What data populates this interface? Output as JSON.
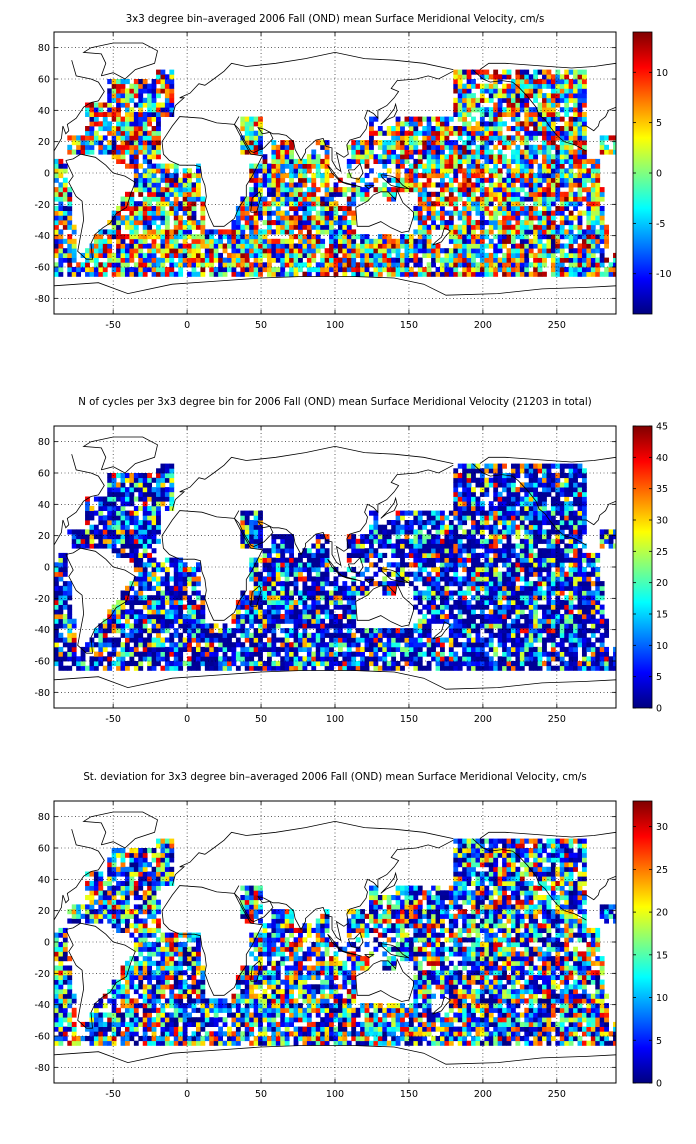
{
  "panels": [
    {
      "title": "3x3 degree bin–averaged 2006 Fall (OND) mean Surface Meridional Velocity, cm/s",
      "chart_data": {
        "type": "heatmap",
        "xlim": [
          -90,
          290
        ],
        "ylim": [
          -90,
          90
        ],
        "xticks": [
          -50,
          0,
          50,
          100,
          150,
          200,
          250
        ],
        "yticks": [
          -80,
          -60,
          -40,
          -20,
          0,
          20,
          40,
          60,
          80
        ],
        "grid": "dotted",
        "bin_size_deg": 3,
        "colorbar": {
          "range": [
            -14,
            14
          ],
          "ticks": [
            -10,
            -5,
            0,
            5,
            10
          ],
          "colormap": "jet"
        }
      }
    },
    {
      "title": "N of cycles per 3x3 degree bin for 2006 Fall (OND) mean Surface Meridional Velocity (21203 in total)",
      "chart_data": {
        "type": "heatmap",
        "xlim": [
          -90,
          290
        ],
        "ylim": [
          -90,
          90
        ],
        "xticks": [
          -50,
          0,
          50,
          100,
          150,
          200,
          250
        ],
        "yticks": [
          -80,
          -60,
          -40,
          -20,
          0,
          20,
          40,
          60,
          80
        ],
        "grid": "dotted",
        "bin_size_deg": 3,
        "colorbar": {
          "range": [
            0,
            45
          ],
          "ticks": [
            0,
            5,
            10,
            15,
            20,
            25,
            30,
            35,
            40,
            45
          ],
          "colormap": "jet"
        }
      }
    },
    {
      "title": "St. deviation for 3x3 degree bin–averaged 2006 Fall (OND) mean Surface Meridional Velocity, cm/s",
      "chart_data": {
        "type": "heatmap",
        "xlim": [
          -90,
          290
        ],
        "ylim": [
          -90,
          90
        ],
        "xticks": [
          -50,
          0,
          50,
          100,
          150,
          200,
          250
        ],
        "yticks": [
          -80,
          -60,
          -40,
          -20,
          0,
          20,
          40,
          60,
          80
        ],
        "grid": "dotted",
        "bin_size_deg": 3,
        "colorbar": {
          "range": [
            0,
            33
          ],
          "ticks": [
            0,
            5,
            10,
            15,
            20,
            25,
            30
          ],
          "colormap": "jet"
        }
      }
    }
  ]
}
